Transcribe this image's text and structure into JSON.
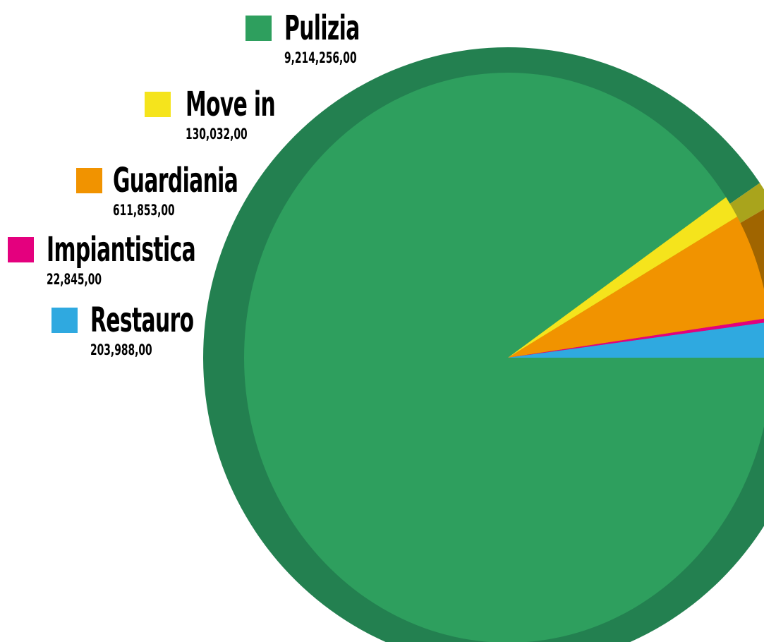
{
  "chart_data": {
    "type": "pie",
    "title": "",
    "legend_position": "left",
    "series": [
      {
        "name": "Pulizia",
        "value": 9214256,
        "value_label": "9,214,256,00",
        "color": "#2e9f5e",
        "shade": "#238050"
      },
      {
        "name": "Move in",
        "value": 130032,
        "value_label": "130,032,00",
        "color": "#f5e41c",
        "shade": "#a9a41c"
      },
      {
        "name": "Guardiania",
        "value": 611853,
        "value_label": "611,853,00",
        "color": "#f19300",
        "shade": "#a06500"
      },
      {
        "name": "Impiantistica",
        "value": 22845,
        "value_label": "22,845,00",
        "color": "#e4007e",
        "shade": "#9c0a5c"
      },
      {
        "name": "Restauro",
        "value": 203988,
        "value_label": "203,988,00",
        "color": "#2fa9e0",
        "shade": "#1f7194"
      }
    ]
  }
}
